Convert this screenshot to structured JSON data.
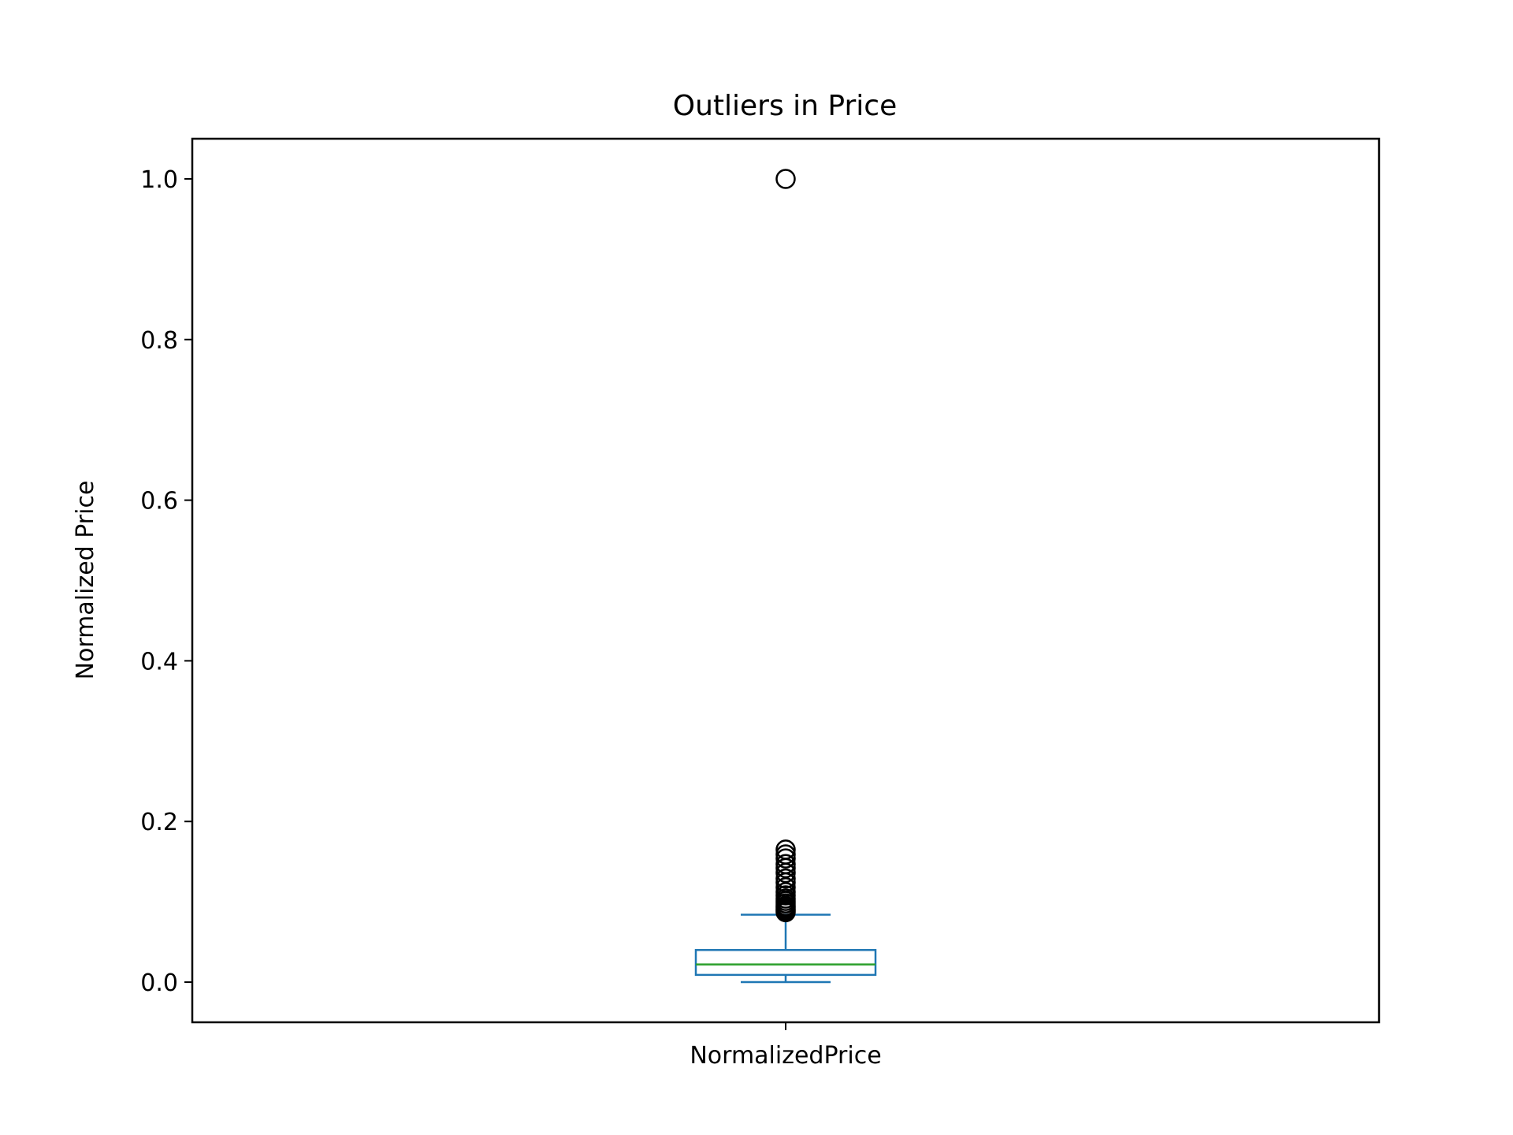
{
  "chart_data": {
    "type": "box",
    "title": "Outliers in Price",
    "xlabel": "",
    "ylabel": "Normalized Price",
    "categories": [
      "NormalizedPrice"
    ],
    "ylim": [
      -0.05,
      1.05
    ],
    "yticks": [
      0.0,
      0.2,
      0.4,
      0.6,
      0.8,
      1.0
    ],
    "ytick_labels": [
      "0.0",
      "0.2",
      "0.4",
      "0.6",
      "0.8",
      "1.0"
    ],
    "box": {
      "whisker_low": 0.0,
      "q1": 0.009,
      "median": 0.022,
      "q3": 0.04,
      "whisker_high": 0.084
    },
    "outliers": [
      0.087,
      0.089,
      0.091,
      0.093,
      0.095,
      0.098,
      0.101,
      0.104,
      0.108,
      0.112,
      0.118,
      0.124,
      0.129,
      0.136,
      0.142,
      0.147,
      0.154,
      0.159,
      0.165,
      1.0
    ],
    "grid": false,
    "colors": {
      "box": "#1f77b4",
      "median": "#2ca02c",
      "outlier_edge": "#000000"
    }
  }
}
